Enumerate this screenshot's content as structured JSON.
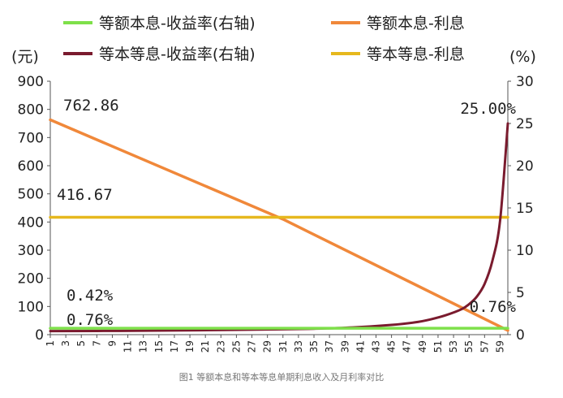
{
  "caption": "图1 等额本息和等本等息单期利息收入及月利率对比",
  "chart_data": {
    "type": "line",
    "title": "",
    "y_left_unit": "(元)",
    "y_right_unit": "(%)",
    "ylim_left": [
      0,
      900
    ],
    "ylim_right": [
      0,
      30
    ],
    "yticks_left": [
      "0",
      "100",
      "200",
      "300",
      "400",
      "500",
      "600",
      "700",
      "800",
      "900"
    ],
    "yticks_right": [
      "0",
      "5",
      "10",
      "15",
      "20",
      "25",
      "30"
    ],
    "xticks": [
      "1",
      "3",
      "5",
      "7",
      "9",
      "11",
      "13",
      "15",
      "17",
      "19",
      "21",
      "23",
      "25",
      "27",
      "29",
      "31",
      "33",
      "35",
      "37",
      "39",
      "41",
      "43",
      "45",
      "47",
      "49",
      "51",
      "53",
      "55",
      "57",
      "59"
    ],
    "x_range": [
      1,
      60
    ],
    "grid": false,
    "legend_position": "top",
    "series": [
      {
        "name": "等额本息-收益率(右轴)",
        "axis": "right",
        "color": "#7ee04a",
        "points": [
          [
            1,
            0.76
          ],
          [
            60,
            0.76
          ]
        ]
      },
      {
        "name": "等额本息-利息",
        "axis": "left",
        "color": "#f0883a",
        "points": [
          [
            1,
            762.86
          ],
          [
            31,
            410
          ],
          [
            60,
            15
          ]
        ]
      },
      {
        "name": "等本等息-收益率(右轴)",
        "axis": "right",
        "color": "#7a1b2e",
        "points": [
          [
            1,
            0.42
          ],
          [
            10,
            0.45
          ],
          [
            20,
            0.52
          ],
          [
            30,
            0.62
          ],
          [
            35,
            0.7
          ],
          [
            40,
            0.85
          ],
          [
            45,
            1.15
          ],
          [
            48,
            1.45
          ],
          [
            50,
            1.8
          ],
          [
            52,
            2.3
          ],
          [
            54,
            3.0
          ],
          [
            55,
            3.6
          ],
          [
            56,
            4.5
          ],
          [
            57,
            6.0
          ],
          [
            58,
            8.7
          ],
          [
            59,
            13.5
          ],
          [
            60,
            25.0
          ]
        ]
      },
      {
        "name": "等本等息-利息",
        "axis": "left",
        "color": "#e6b81e",
        "points": [
          [
            1,
            416.67
          ],
          [
            60,
            416.67
          ]
        ]
      }
    ],
    "annotations": [
      {
        "text": "762.86",
        "series": 1,
        "x": 1,
        "y": 762.86
      },
      {
        "text": "416.67",
        "series": 3,
        "x": 1,
        "y": 416.67
      },
      {
        "text": "0.42%",
        "series": 2,
        "x": 1,
        "y": 0.42
      },
      {
        "text": "0.76%",
        "series": 0,
        "x": 1,
        "y": 0.76
      },
      {
        "text": "25.00%",
        "series": 2,
        "x": 60,
        "y": 25.0
      },
      {
        "text": "0.76%",
        "series": 0,
        "x": 60,
        "y": 0.76
      }
    ]
  }
}
